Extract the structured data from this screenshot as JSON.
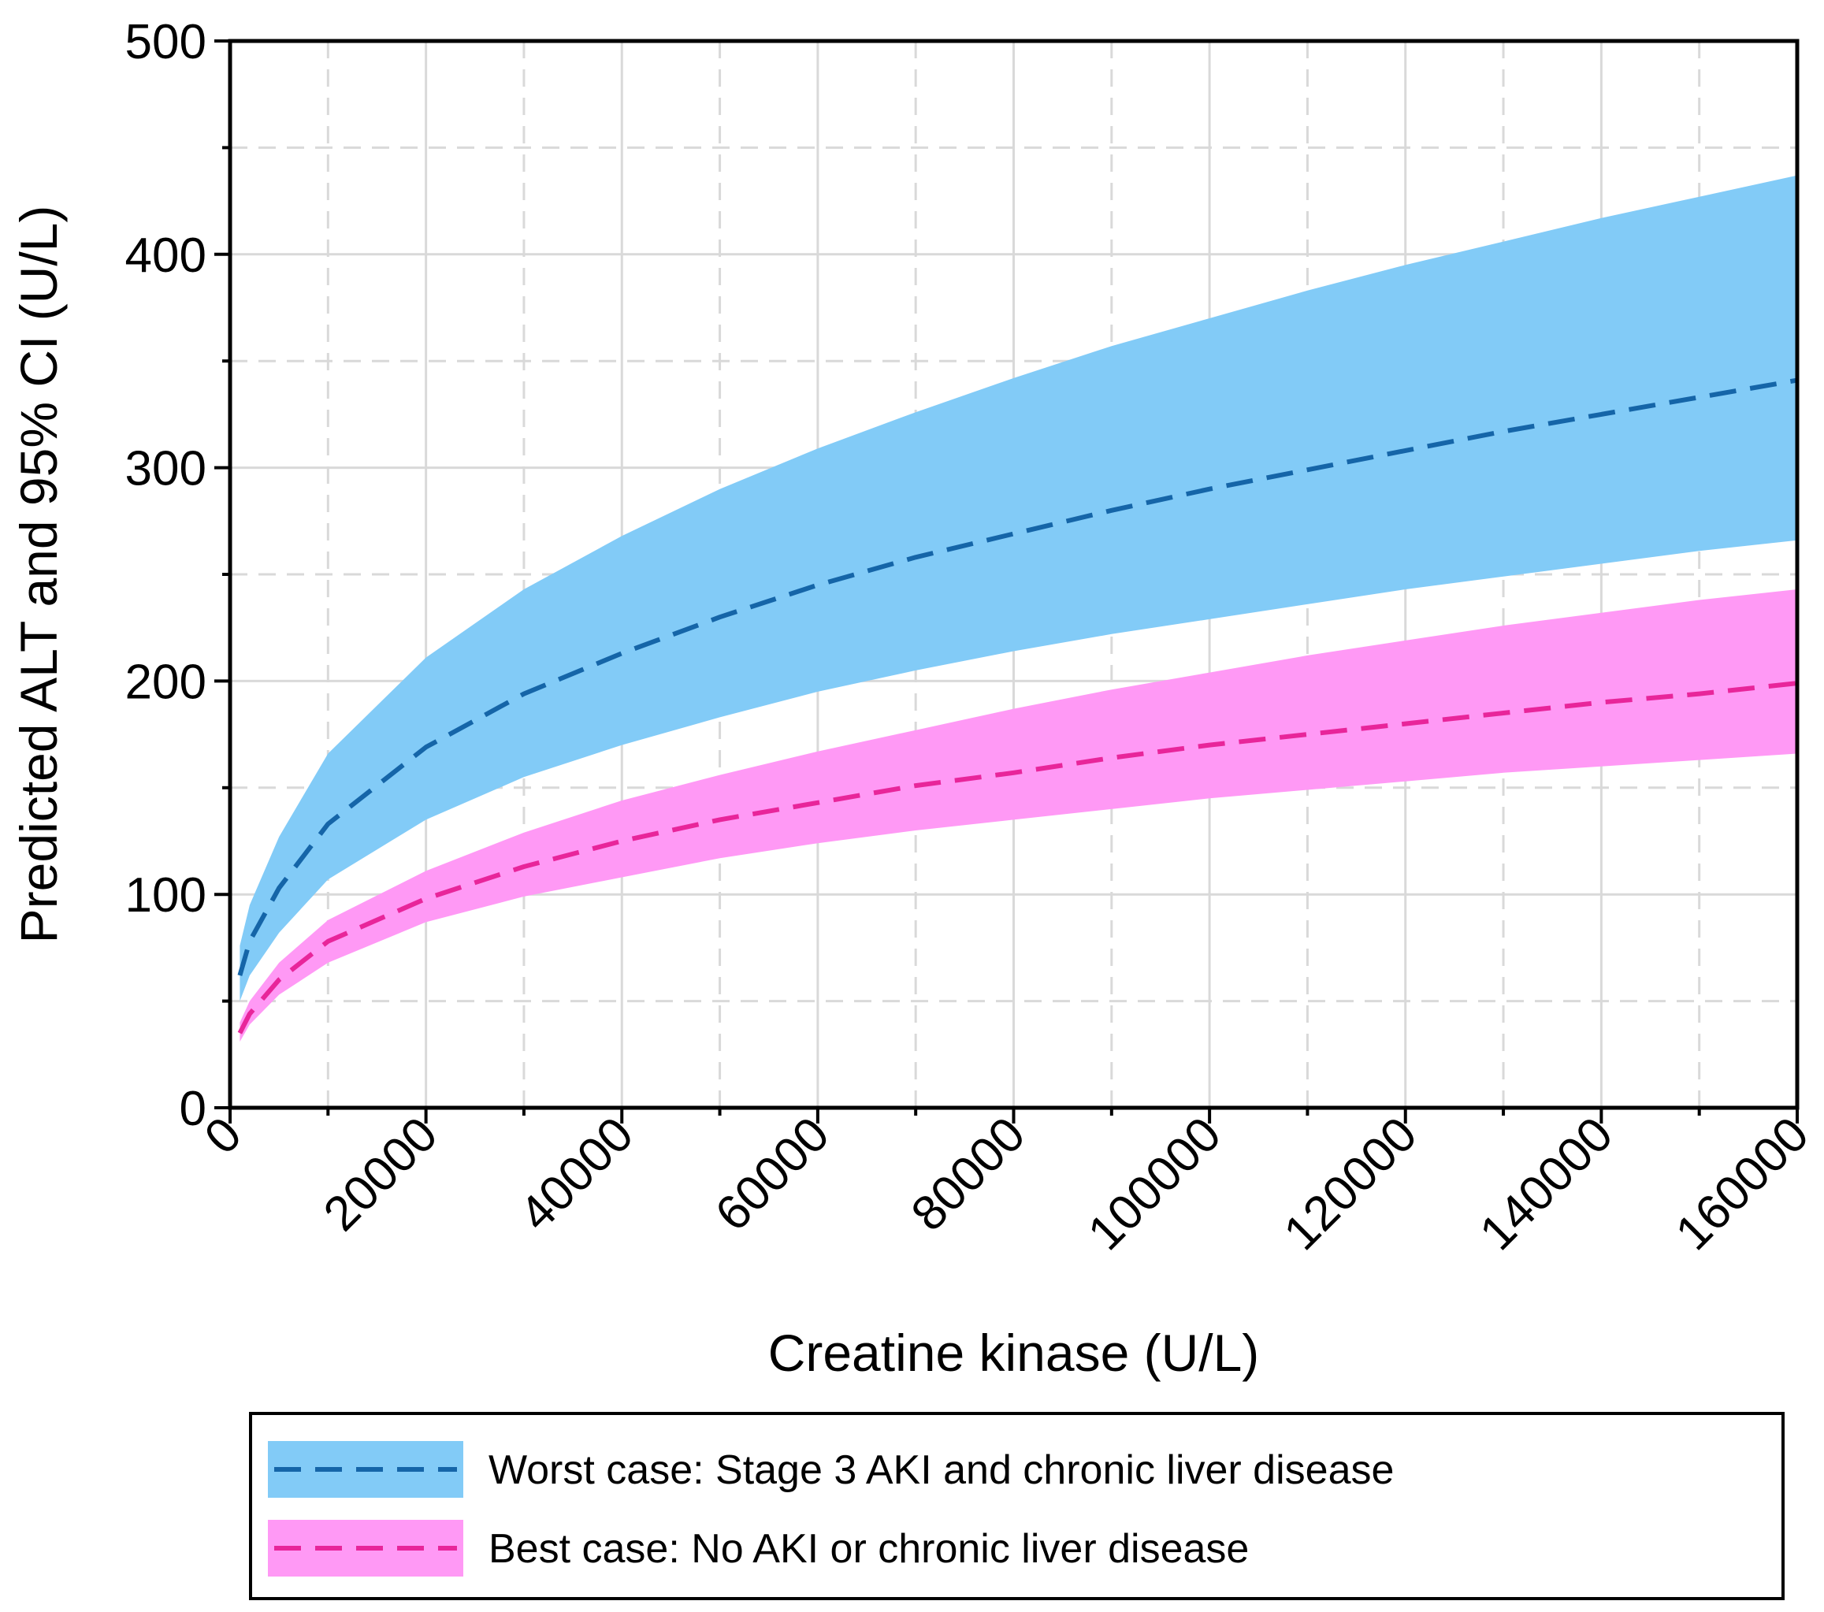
{
  "chart_data": {
    "type": "line",
    "title": "",
    "xlabel": "Creatine kinase (U/L)",
    "ylabel": "Predicted ALT and 95% CI (U/L)",
    "xlim": [
      0,
      160000
    ],
    "ylim": [
      0,
      500
    ],
    "x_ticks": [
      0,
      20000,
      40000,
      60000,
      80000,
      100000,
      120000,
      140000,
      160000
    ],
    "x_tick_labels": [
      "0",
      "20000",
      "40000",
      "60000",
      "80000",
      "100000",
      "120000",
      "140000",
      "160000"
    ],
    "x_minor_ticks": [
      10000,
      30000,
      50000,
      70000,
      90000,
      110000,
      130000,
      150000
    ],
    "y_ticks": [
      0,
      100,
      200,
      300,
      400,
      500
    ],
    "y_tick_labels": [
      "0",
      "100",
      "200",
      "300",
      "400",
      "500"
    ],
    "y_minor_ticks": [
      50,
      150,
      250,
      350,
      450
    ],
    "grid": true,
    "legend_position": "bottom-outside",
    "x": [
      1000,
      2000,
      5000,
      10000,
      20000,
      30000,
      40000,
      50000,
      60000,
      70000,
      80000,
      90000,
      100000,
      110000,
      120000,
      130000,
      140000,
      150000,
      160000
    ],
    "series": [
      {
        "name": "Worst case: Stage 3 AKI and chronic liver disease",
        "line_color": "#1565a8",
        "band_color": "#82cbf7",
        "values": [
          62,
          78,
          103,
          133,
          169,
          194,
          213,
          230,
          245,
          258,
          269,
          280,
          290,
          299,
          308,
          317,
          325,
          333,
          341
        ],
        "lower": [
          50,
          62,
          82,
          107,
          135,
          155,
          170,
          183,
          195,
          205,
          214,
          222,
          229,
          236,
          243,
          249,
          255,
          261,
          266
        ],
        "upper": [
          76,
          95,
          127,
          166,
          211,
          243,
          268,
          290,
          309,
          326,
          342,
          357,
          370,
          383,
          395,
          406,
          417,
          427,
          437
        ]
      },
      {
        "name": "Best case: No AKI or chronic liver disease",
        "line_color": "#e8259a",
        "band_color": "#ff99f5",
        "values": [
          35,
          44,
          60,
          78,
          98,
          113,
          125,
          135,
          143,
          151,
          157,
          164,
          170,
          175,
          180,
          185,
          190,
          194,
          199
        ],
        "lower": [
          31,
          39,
          53,
          68,
          87,
          99,
          108,
          117,
          124,
          130,
          135,
          140,
          145,
          149,
          153,
          157,
          160,
          163,
          166
        ],
        "upper": [
          40,
          50,
          68,
          88,
          111,
          129,
          144,
          156,
          167,
          177,
          187,
          196,
          204,
          212,
          219,
          226,
          232,
          238,
          243
        ]
      }
    ]
  }
}
